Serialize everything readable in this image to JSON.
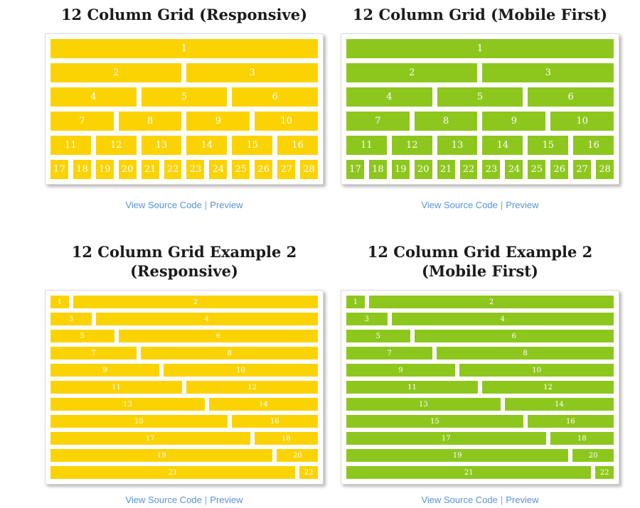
{
  "colors": {
    "yellow": "#FBD303",
    "green": "#8DC71E",
    "link_blue": "#5793D9",
    "title_text": "#1b1b1b",
    "block_text": "#ffffff",
    "panel_border": "#d8d8d8"
  },
  "links_label": {
    "view_source": "View Source Code",
    "separator": "|",
    "preview": "Preview"
  },
  "sections": [
    {
      "title": "12 Column Grid (Responsive)",
      "title_line2": "",
      "theme": "yellow",
      "grid": "standard"
    },
    {
      "title": "12 Column Grid (Mobile First)",
      "title_line2": "",
      "theme": "green",
      "grid": "standard"
    },
    {
      "title": "12 Column Grid Example 2",
      "title_line2": "(Responsive)",
      "theme": "yellow",
      "grid": "example2"
    },
    {
      "title": "12 Column Grid Example 2",
      "title_line2": "(Mobile First)",
      "theme": "green",
      "grid": "example2"
    }
  ],
  "grids": {
    "standard": [
      {
        "label": "1",
        "span": 12
      },
      {
        "label": "2",
        "span": 6
      },
      {
        "label": "3",
        "span": 6
      },
      {
        "label": "4",
        "span": 4
      },
      {
        "label": "5",
        "span": 4
      },
      {
        "label": "6",
        "span": 4
      },
      {
        "label": "7",
        "span": 3
      },
      {
        "label": "8",
        "span": 3
      },
      {
        "label": "9",
        "span": 3
      },
      {
        "label": "10",
        "span": 3
      },
      {
        "label": "11",
        "span": 2
      },
      {
        "label": "12",
        "span": 2
      },
      {
        "label": "13",
        "span": 2
      },
      {
        "label": "14",
        "span": 2
      },
      {
        "label": "15",
        "span": 2
      },
      {
        "label": "16",
        "span": 2
      },
      {
        "label": "17",
        "span": 1
      },
      {
        "label": "18",
        "span": 1
      },
      {
        "label": "19",
        "span": 1
      },
      {
        "label": "20",
        "span": 1
      },
      {
        "label": "21",
        "span": 1
      },
      {
        "label": "22",
        "span": 1
      },
      {
        "label": "23",
        "span": 1
      },
      {
        "label": "24",
        "span": 1
      },
      {
        "label": "25",
        "span": 1
      },
      {
        "label": "26",
        "span": 1
      },
      {
        "label": "27",
        "span": 1
      },
      {
        "label": "28",
        "span": 1
      }
    ],
    "example2": [
      {
        "label": "1",
        "span": 1
      },
      {
        "label": "2",
        "span": 11
      },
      {
        "label": "3",
        "span": 2
      },
      {
        "label": "4",
        "span": 10
      },
      {
        "label": "5",
        "span": 3
      },
      {
        "label": "6",
        "span": 9
      },
      {
        "label": "7",
        "span": 4
      },
      {
        "label": "8",
        "span": 8
      },
      {
        "label": "9",
        "span": 5
      },
      {
        "label": "10",
        "span": 7
      },
      {
        "label": "11",
        "span": 6
      },
      {
        "label": "12",
        "span": 6
      },
      {
        "label": "13",
        "span": 7
      },
      {
        "label": "14",
        "span": 5
      },
      {
        "label": "15",
        "span": 8
      },
      {
        "label": "16",
        "span": 4
      },
      {
        "label": "17",
        "span": 9
      },
      {
        "label": "18",
        "span": 3
      },
      {
        "label": "19",
        "span": 10
      },
      {
        "label": "20",
        "span": 2
      },
      {
        "label": "21",
        "span": 11
      },
      {
        "label": "22",
        "span": 1
      }
    ]
  }
}
